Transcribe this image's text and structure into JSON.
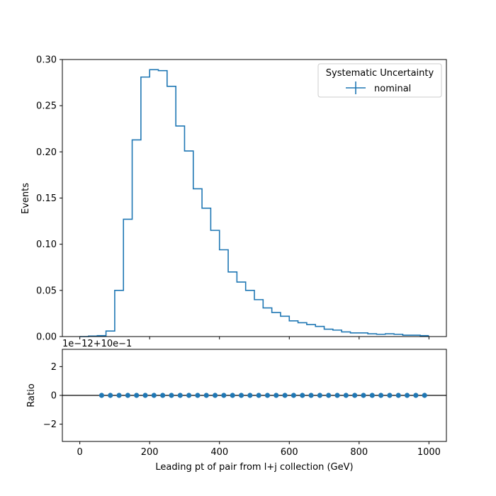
{
  "chart_data": [
    {
      "type": "step",
      "ylabel": "Events",
      "xlim": [
        -50,
        1050
      ],
      "ylim": [
        0,
        0.3
      ],
      "yticks": [
        0.0,
        0.05,
        0.1,
        0.15,
        0.2,
        0.25,
        0.3
      ],
      "ytick_labels": [
        "0.00",
        "0.05",
        "0.10",
        "0.15",
        "0.20",
        "0.25",
        "0.30"
      ],
      "xticks": [
        0,
        200,
        400,
        600,
        800,
        1000
      ],
      "bin_edges": [
        0,
        25,
        50,
        75,
        100,
        125,
        150,
        175,
        200,
        225,
        250,
        275,
        300,
        325,
        350,
        375,
        400,
        425,
        450,
        475,
        500,
        525,
        550,
        575,
        600,
        625,
        650,
        675,
        700,
        725,
        750,
        775,
        800,
        825,
        850,
        875,
        900,
        925,
        950,
        975,
        1000
      ],
      "series": [
        {
          "name": "nominal",
          "values": [
            0.0,
            0.0005,
            0.001,
            0.006,
            0.05,
            0.127,
            0.213,
            0.281,
            0.289,
            0.288,
            0.271,
            0.228,
            0.201,
            0.16,
            0.139,
            0.115,
            0.094,
            0.07,
            0.059,
            0.05,
            0.04,
            0.031,
            0.026,
            0.022,
            0.017,
            0.015,
            0.013,
            0.011,
            0.008,
            0.007,
            0.005,
            0.004,
            0.004,
            0.003,
            0.0025,
            0.003,
            0.0025,
            0.0015,
            0.0015,
            0.001
          ]
        }
      ],
      "legend": {
        "title": "Systematic Uncertainty",
        "entries": [
          "nominal"
        ],
        "position": "top-right"
      },
      "grid": false,
      "color": "#1f77b4"
    },
    {
      "type": "scatter",
      "xlabel": "Leading pt of pair from l+j collection (GeV)",
      "ylabel": "Ratio",
      "offset_text": "1e−12+10e−1",
      "xlim": [
        -50,
        1050
      ],
      "ylim": [
        -3.2,
        3.2
      ],
      "yticks": [
        -2,
        0,
        2
      ],
      "ytick_labels": [
        "−2",
        "0",
        "2"
      ],
      "xticks": [
        0,
        200,
        400,
        600,
        800,
        1000
      ],
      "xtick_labels": [
        "0",
        "200",
        "400",
        "600",
        "800",
        "1000"
      ],
      "x": [
        62.5,
        87.5,
        112.5,
        137.5,
        162.5,
        187.5,
        212.5,
        237.5,
        262.5,
        287.5,
        312.5,
        337.5,
        362.5,
        387.5,
        412.5,
        437.5,
        462.5,
        487.5,
        512.5,
        537.5,
        562.5,
        587.5,
        612.5,
        637.5,
        662.5,
        687.5,
        712.5,
        737.5,
        762.5,
        787.5,
        812.5,
        837.5,
        862.5,
        887.5,
        912.5,
        937.5,
        962.5,
        987.5
      ],
      "values": [
        0,
        0,
        0,
        0,
        0,
        0,
        0,
        0,
        0,
        0,
        0,
        0,
        0,
        0,
        0,
        0,
        0,
        0,
        0,
        0,
        0,
        0,
        0,
        0,
        0,
        0,
        0,
        0,
        0,
        0,
        0,
        0,
        0,
        0,
        0,
        0,
        0,
        0
      ],
      "reference_line": 0,
      "grid": false,
      "color": "#1f77b4"
    }
  ]
}
